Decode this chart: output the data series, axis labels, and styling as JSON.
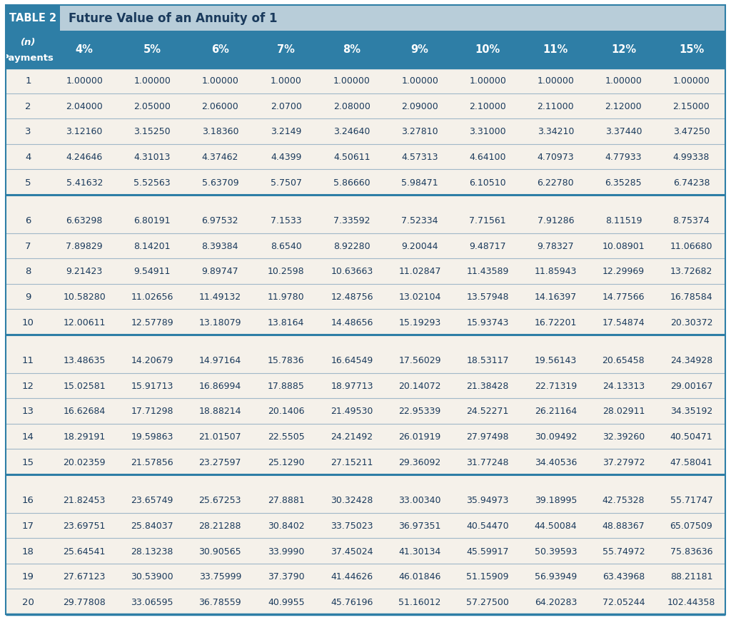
{
  "title_box_text": "TABLE 2",
  "title_text": "Future Value of an Annuity of 1",
  "header_n": "(n)",
  "header_payments": "Payments",
  "columns": [
    "4%",
    "5%",
    "6%",
    "7%",
    "8%",
    "9%",
    "10%",
    "11%",
    "12%",
    "15%"
  ],
  "rows": [
    [
      1,
      "1.00000",
      "1.00000",
      "1.00000",
      "1.0000",
      "1.00000",
      "1.00000",
      "1.00000",
      "1.00000",
      "1.00000",
      "1.00000"
    ],
    [
      2,
      "2.04000",
      "2.05000",
      "2.06000",
      "2.0700",
      "2.08000",
      "2.09000",
      "2.10000",
      "2.11000",
      "2.12000",
      "2.15000"
    ],
    [
      3,
      "3.12160",
      "3.15250",
      "3.18360",
      "3.2149",
      "3.24640",
      "3.27810",
      "3.31000",
      "3.34210",
      "3.37440",
      "3.47250"
    ],
    [
      4,
      "4.24646",
      "4.31013",
      "4.37462",
      "4.4399",
      "4.50611",
      "4.57313",
      "4.64100",
      "4.70973",
      "4.77933",
      "4.99338"
    ],
    [
      5,
      "5.41632",
      "5.52563",
      "5.63709",
      "5.7507",
      "5.86660",
      "5.98471",
      "6.10510",
      "6.22780",
      "6.35285",
      "6.74238"
    ],
    [
      6,
      "6.63298",
      "6.80191",
      "6.97532",
      "7.1533",
      "7.33592",
      "7.52334",
      "7.71561",
      "7.91286",
      "8.11519",
      "8.75374"
    ],
    [
      7,
      "7.89829",
      "8.14201",
      "8.39384",
      "8.6540",
      "8.92280",
      "9.20044",
      "9.48717",
      "9.78327",
      "10.08901",
      "11.06680"
    ],
    [
      8,
      "9.21423",
      "9.54911",
      "9.89747",
      "10.2598",
      "10.63663",
      "11.02847",
      "11.43589",
      "11.85943",
      "12.29969",
      "13.72682"
    ],
    [
      9,
      "10.58280",
      "11.02656",
      "11.49132",
      "11.9780",
      "12.48756",
      "13.02104",
      "13.57948",
      "14.16397",
      "14.77566",
      "16.78584"
    ],
    [
      10,
      "12.00611",
      "12.57789",
      "13.18079",
      "13.8164",
      "14.48656",
      "15.19293",
      "15.93743",
      "16.72201",
      "17.54874",
      "20.30372"
    ],
    [
      11,
      "13.48635",
      "14.20679",
      "14.97164",
      "15.7836",
      "16.64549",
      "17.56029",
      "18.53117",
      "19.56143",
      "20.65458",
      "24.34928"
    ],
    [
      12,
      "15.02581",
      "15.91713",
      "16.86994",
      "17.8885",
      "18.97713",
      "20.14072",
      "21.38428",
      "22.71319",
      "24.13313",
      "29.00167"
    ],
    [
      13,
      "16.62684",
      "17.71298",
      "18.88214",
      "20.1406",
      "21.49530",
      "22.95339",
      "24.52271",
      "26.21164",
      "28.02911",
      "34.35192"
    ],
    [
      14,
      "18.29191",
      "19.59863",
      "21.01507",
      "22.5505",
      "24.21492",
      "26.01919",
      "27.97498",
      "30.09492",
      "32.39260",
      "40.50471"
    ],
    [
      15,
      "20.02359",
      "21.57856",
      "23.27597",
      "25.1290",
      "27.15211",
      "29.36092",
      "31.77248",
      "34.40536",
      "37.27972",
      "47.58041"
    ],
    [
      16,
      "21.82453",
      "23.65749",
      "25.67253",
      "27.8881",
      "30.32428",
      "33.00340",
      "35.94973",
      "39.18995",
      "42.75328",
      "55.71747"
    ],
    [
      17,
      "23.69751",
      "25.84037",
      "28.21288",
      "30.8402",
      "33.75023",
      "36.97351",
      "40.54470",
      "44.50084",
      "48.88367",
      "65.07509"
    ],
    [
      18,
      "25.64541",
      "28.13238",
      "30.90565",
      "33.9990",
      "37.45024",
      "41.30134",
      "45.59917",
      "50.39593",
      "55.74972",
      "75.83636"
    ],
    [
      19,
      "27.67123",
      "30.53900",
      "33.75999",
      "37.3790",
      "41.44626",
      "46.01846",
      "51.15909",
      "56.93949",
      "63.43968",
      "88.21181"
    ],
    [
      20,
      "29.77808",
      "33.06595",
      "36.78559",
      "40.9955",
      "45.76196",
      "51.16012",
      "57.27500",
      "64.20283",
      "72.05244",
      "102.44358"
    ]
  ],
  "header_bg": "#2e7ea6",
  "title_bar_bg": "#b8cdd9",
  "title_box_bg": "#2e7ea6",
  "row_bg": "#f5f1ea",
  "gap_bg": "#e8e0d0",
  "separator_color": "#2e7ea6",
  "separator_thin": "#a0b8c8",
  "text_color_data": "#1a3a5c",
  "bg_color": "#ffffff"
}
